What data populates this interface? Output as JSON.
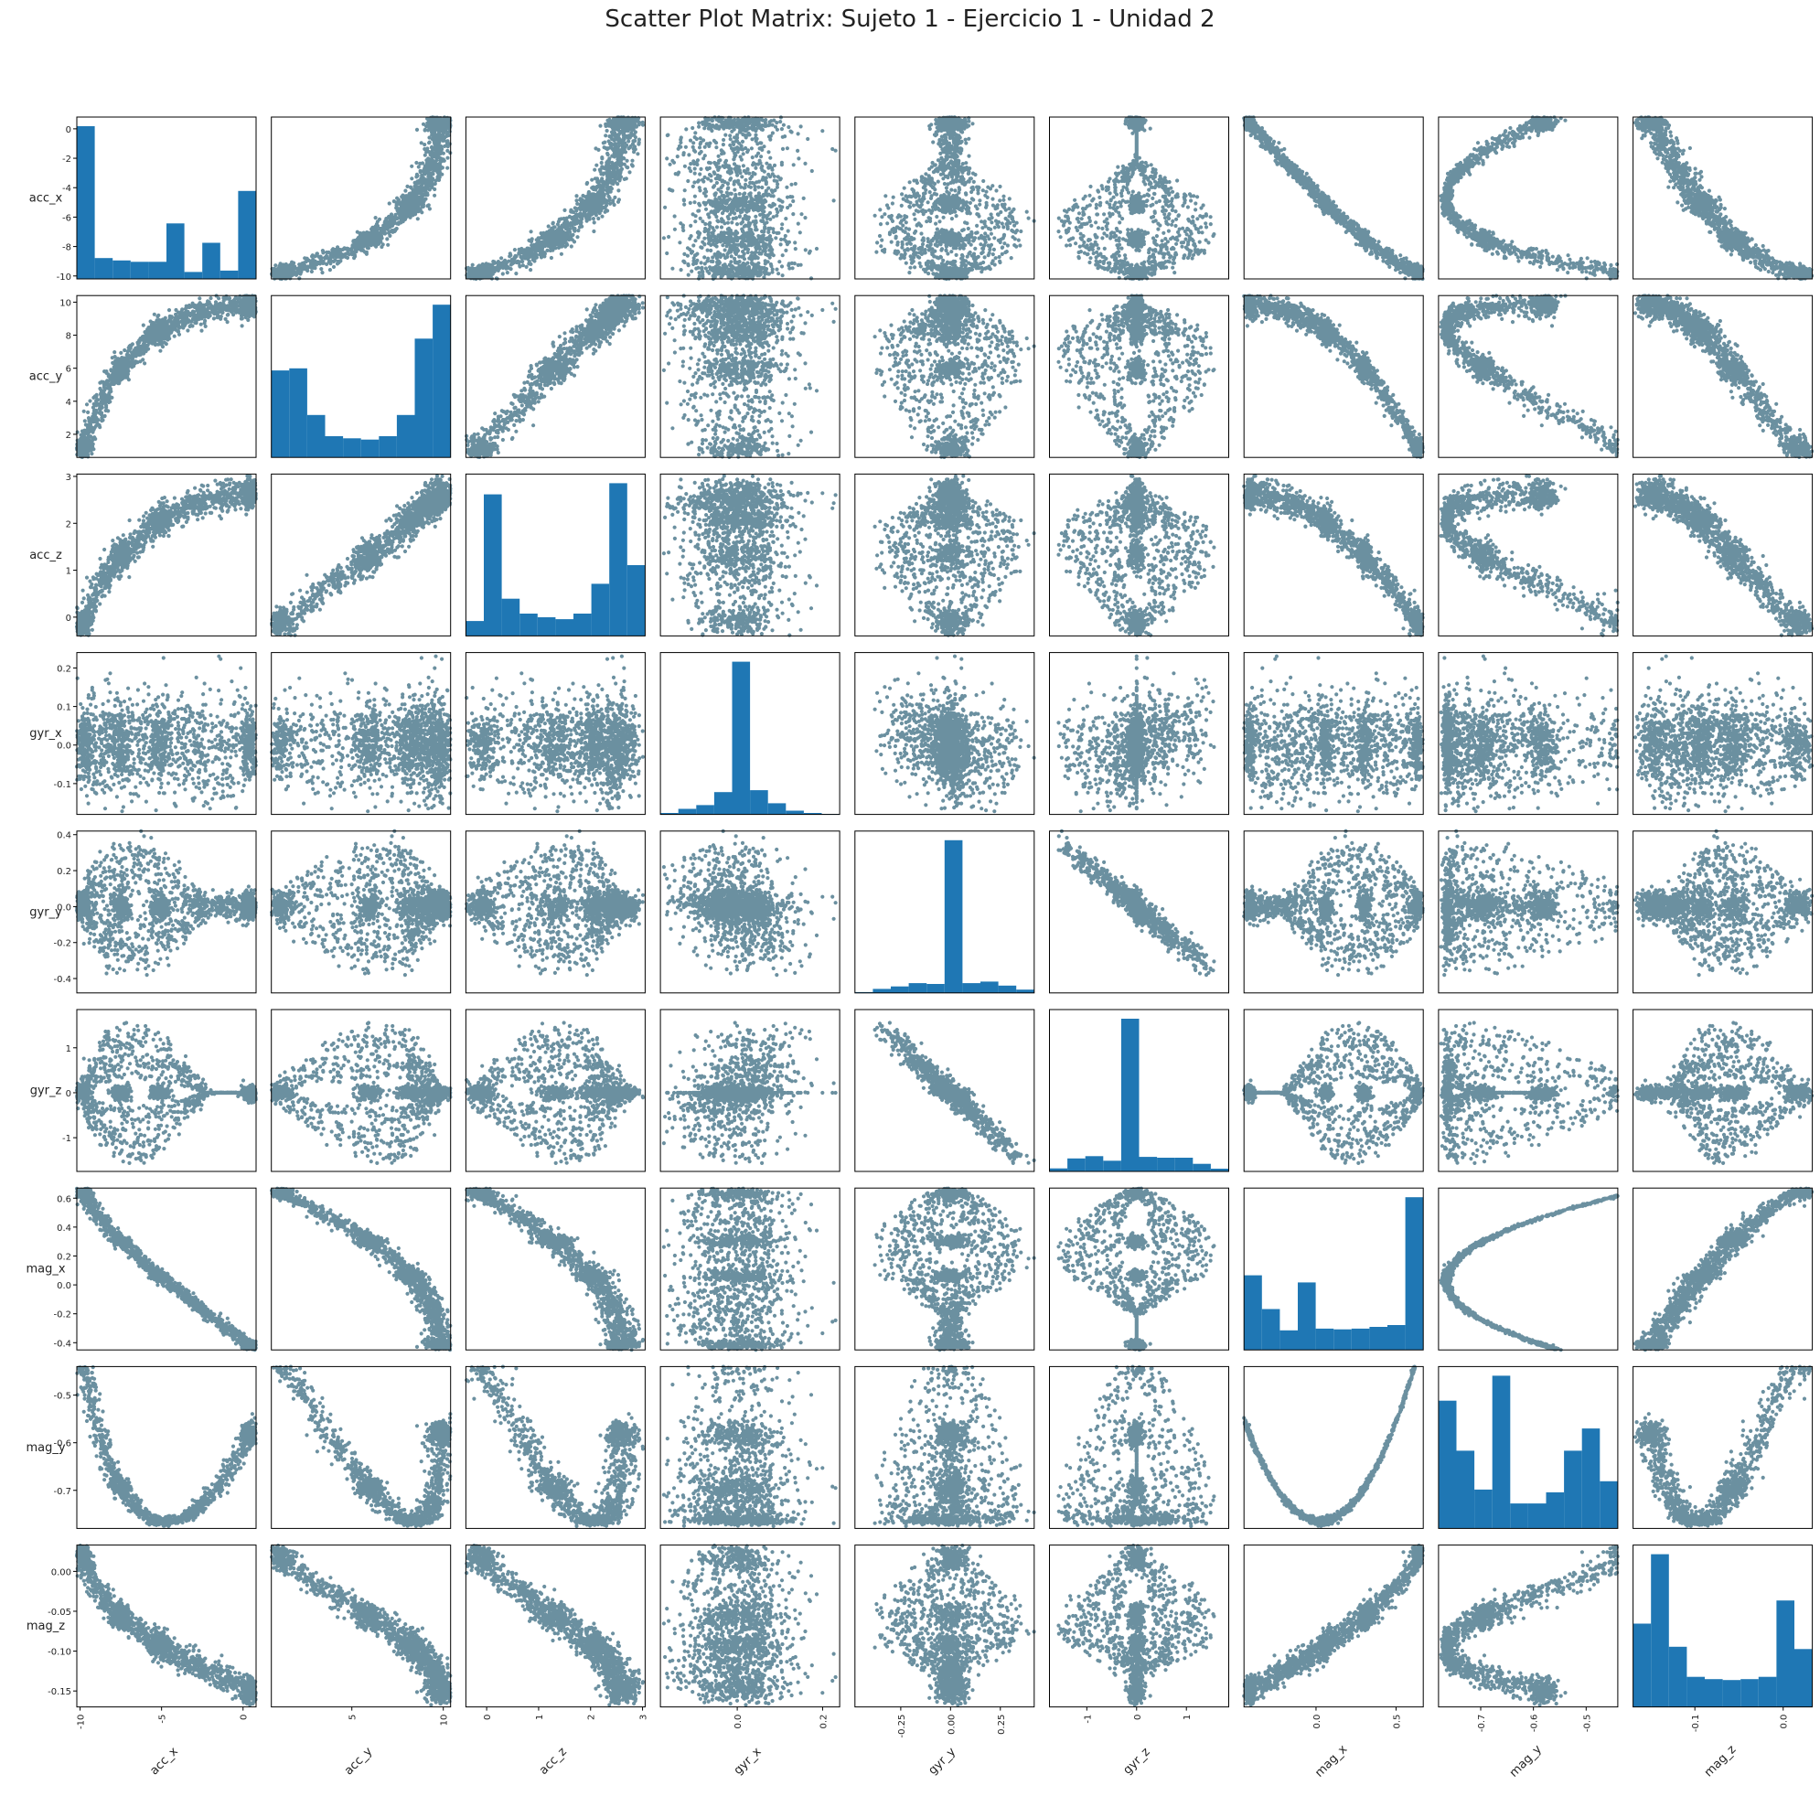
{
  "title": "Scatter Plot Matrix: Sujeto 1 - Ejercicio 1 - Unidad 2",
  "colors": {
    "points": "#003f5c",
    "hist": "#1f77b4"
  },
  "chart_data": {
    "type": "scatter",
    "subtype": "scatter_matrix",
    "diagonal": "histogram",
    "title": "Scatter Plot Matrix: Sujeto 1 - Ejercicio 1 - Unidad 2",
    "variables": [
      {
        "name": "acc_x",
        "range": [
          -10.2,
          0.8
        ],
        "xticks": [
          -10,
          -5,
          0
        ],
        "yticks": [
          0,
          -2,
          -4,
          -6,
          -8,
          -10
        ]
      },
      {
        "name": "acc_y",
        "range": [
          0.6,
          10.4
        ],
        "xticks": [
          5,
          10
        ],
        "yticks": [
          10,
          8,
          6,
          4,
          2
        ]
      },
      {
        "name": "acc_z",
        "range": [
          -0.4,
          3.05
        ],
        "xticks": [
          0,
          1,
          2,
          3
        ],
        "yticks": [
          3,
          2,
          1,
          0
        ]
      },
      {
        "name": "gyr_x",
        "range": [
          -0.18,
          0.24
        ],
        "xticks": [
          0.0,
          0.2
        ],
        "yticks": [
          0.2,
          0.1,
          0.0,
          -0.1
        ]
      },
      {
        "name": "gyr_y",
        "range": [
          -0.48,
          0.42
        ],
        "xticks": [
          -0.25,
          0.0,
          0.25
        ],
        "yticks": [
          0.4,
          0.2,
          0.0,
          -0.2,
          -0.4
        ]
      },
      {
        "name": "gyr_z",
        "range": [
          -1.75,
          1.85
        ],
        "xticks": [
          -1,
          0,
          1
        ],
        "yticks": [
          1,
          0,
          -1
        ]
      },
      {
        "name": "mag_x",
        "range": [
          -0.45,
          0.67
        ],
        "xticks": [
          0.0,
          0.5
        ],
        "yticks": [
          0.6,
          0.4,
          0.2,
          0.0,
          -0.2,
          -0.4
        ]
      },
      {
        "name": "mag_y",
        "range": [
          -0.78,
          -0.44
        ],
        "xticks": [
          -0.7,
          -0.6,
          -0.5
        ],
        "yticks": [
          -0.5,
          -0.6,
          -0.7
        ]
      },
      {
        "name": "mag_z",
        "range": [
          -0.17,
          0.033
        ],
        "xticks": [
          -0.1,
          0.0
        ],
        "yticks": [
          0.0,
          -0.05,
          -0.1,
          -0.15
        ]
      }
    ],
    "histograms": {
      "acc_x": [
        330,
        45,
        40,
        37,
        37,
        120,
        15,
        78,
        18,
        190
      ],
      "acc_y": [
        205,
        210,
        100,
        50,
        45,
        42,
        50,
        100,
        280,
        360
      ],
      "acc_z": [
        40,
        380,
        100,
        60,
        50,
        45,
        60,
        140,
        410,
        190
      ],
      "gyr_x": [
        8,
        30,
        50,
        120,
        820,
        130,
        60,
        20,
        8,
        3
      ],
      "gyr_y": [
        5,
        25,
        40,
        60,
        55,
        940,
        60,
        70,
        45,
        20
      ],
      "gyr_z": [
        20,
        85,
        100,
        70,
        1000,
        95,
        90,
        90,
        50,
        18
      ],
      "mag_x": [
        210,
        115,
        55,
        190,
        60,
        58,
        60,
        65,
        70,
        430
      ],
      "mag_y": [
        230,
        140,
        70,
        275,
        45,
        45,
        65,
        140,
        180,
        85
      ],
      "mag_z": [
        180,
        330,
        130,
        65,
        60,
        58,
        60,
        65,
        230,
        125
      ]
    }
  }
}
